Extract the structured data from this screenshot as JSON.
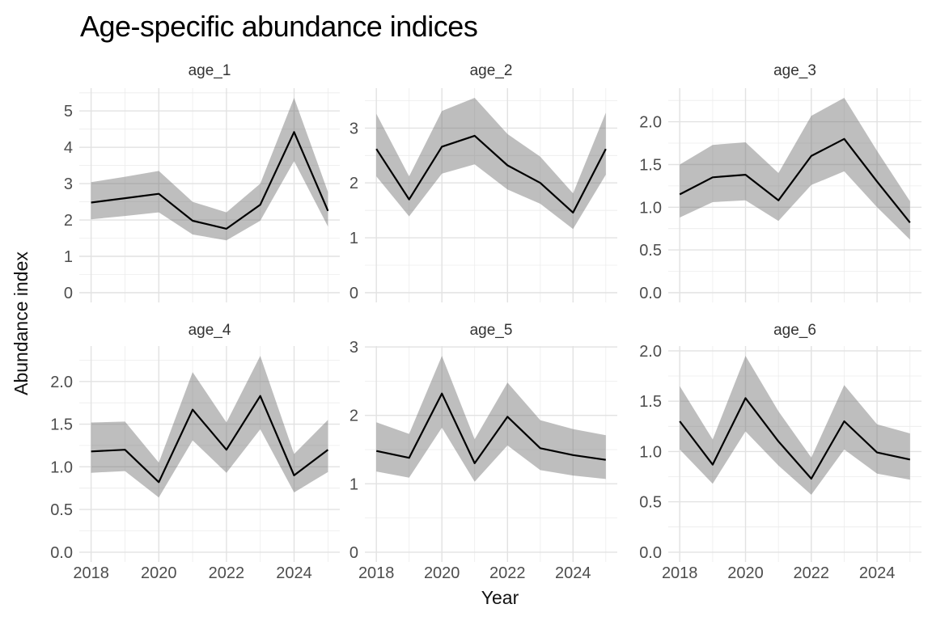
{
  "title": "Age-specific abundance indices",
  "chart_data": {
    "type": "line",
    "title": "Age-specific abundance indices",
    "xlabel": "Year",
    "ylabel": "Abundance index",
    "x": [
      2018,
      2019,
      2020,
      2021,
      2022,
      2023,
      2024,
      2025
    ],
    "x_tick_values": [
      2018,
      2020,
      2022,
      2024
    ],
    "x_tick_labels": [
      "2018",
      "2020",
      "2022",
      "2024"
    ],
    "x_minor_values": [
      2019,
      2021,
      2023,
      2025
    ],
    "xlim": [
      2017.65,
      2025.35
    ],
    "grid": "major and minor, light gray, no axis lines (ggplot minimal theme)",
    "legend": "none",
    "ribbon": "confidence band around each line",
    "facets": [
      {
        "label": "age_1",
        "ytick_labels": [
          "0",
          "1",
          "2",
          "3",
          "4",
          "5"
        ],
        "ytick_values": [
          0,
          1,
          2,
          3,
          4,
          5
        ],
        "mean": [
          2.48,
          2.6,
          2.72,
          1.98,
          1.76,
          2.42,
          4.42,
          2.25
        ],
        "lower": [
          2.02,
          2.11,
          2.21,
          1.6,
          1.44,
          1.98,
          3.62,
          1.82
        ],
        "upper": [
          3.04,
          3.19,
          3.35,
          2.5,
          2.21,
          3.0,
          5.36,
          2.77
        ]
      },
      {
        "label": "age_2",
        "ytick_labels": [
          "0",
          "1",
          "2",
          "3"
        ],
        "ytick_values": [
          0,
          1,
          2,
          3
        ],
        "mean": [
          2.62,
          1.7,
          2.66,
          2.86,
          2.32,
          2.0,
          1.46,
          2.62
        ],
        "lower": [
          2.12,
          1.39,
          2.17,
          2.34,
          1.88,
          1.62,
          1.16,
          2.15
        ],
        "upper": [
          3.26,
          2.12,
          3.31,
          3.55,
          2.89,
          2.48,
          1.81,
          3.28
        ]
      },
      {
        "label": "age_3",
        "ytick_labels": [
          "0.0",
          "0.5",
          "1.0",
          "1.5",
          "2.0"
        ],
        "ytick_values": [
          0,
          0.5,
          1.0,
          1.5,
          2.0
        ],
        "mean": [
          1.15,
          1.35,
          1.38,
          1.08,
          1.6,
          1.8,
          1.3,
          0.82
        ],
        "lower": [
          0.88,
          1.06,
          1.08,
          0.84,
          1.26,
          1.42,
          1.0,
          0.62
        ],
        "upper": [
          1.5,
          1.73,
          1.76,
          1.4,
          2.07,
          2.28,
          1.66,
          1.07
        ]
      },
      {
        "label": "age_4",
        "ytick_labels": [
          "0.0",
          "0.5",
          "1.0",
          "1.5",
          "2.0"
        ],
        "ytick_values": [
          0,
          0.5,
          1.0,
          1.5,
          2.0
        ],
        "mean": [
          1.18,
          1.2,
          0.82,
          1.67,
          1.2,
          1.83,
          0.9,
          1.2
        ],
        "lower": [
          0.93,
          0.95,
          0.64,
          1.31,
          0.93,
          1.44,
          0.7,
          0.94
        ],
        "upper": [
          1.52,
          1.53,
          1.05,
          2.11,
          1.52,
          2.3,
          1.15,
          1.55
        ]
      },
      {
        "label": "age_5",
        "ytick_labels": [
          "0",
          "1",
          "2",
          "3"
        ],
        "ytick_values": [
          0,
          1,
          2,
          3
        ],
        "mean": [
          1.48,
          1.38,
          2.32,
          1.3,
          1.98,
          1.52,
          1.42,
          1.35
        ],
        "lower": [
          1.18,
          1.09,
          1.82,
          1.03,
          1.56,
          1.2,
          1.12,
          1.07
        ],
        "upper": [
          1.9,
          1.73,
          2.87,
          1.65,
          2.48,
          1.93,
          1.8,
          1.71
        ]
      },
      {
        "label": "age_6",
        "ytick_labels": [
          "0.0",
          "0.5",
          "1.0",
          "1.5",
          "2.0"
        ],
        "ytick_values": [
          0,
          0.5,
          1.0,
          1.5,
          2.0
        ],
        "mean": [
          1.3,
          0.87,
          1.53,
          1.1,
          0.73,
          1.3,
          0.99,
          0.92
        ],
        "lower": [
          1.02,
          0.68,
          1.2,
          0.86,
          0.57,
          1.02,
          0.78,
          0.72
        ],
        "upper": [
          1.65,
          1.12,
          1.95,
          1.4,
          0.94,
          1.66,
          1.27,
          1.18
        ]
      }
    ],
    "colors": {
      "line": "#000000",
      "ribbon": "#6f6f6f",
      "ribbon_opacity": 0.45,
      "grid_major": "#e2e2e2",
      "grid_minor": "#ececec",
      "tick_text": "#4d4d4d",
      "strip_text": "#333333",
      "axis_title_text": "#111111",
      "title_text": "#000000",
      "background": "#ffffff"
    }
  }
}
